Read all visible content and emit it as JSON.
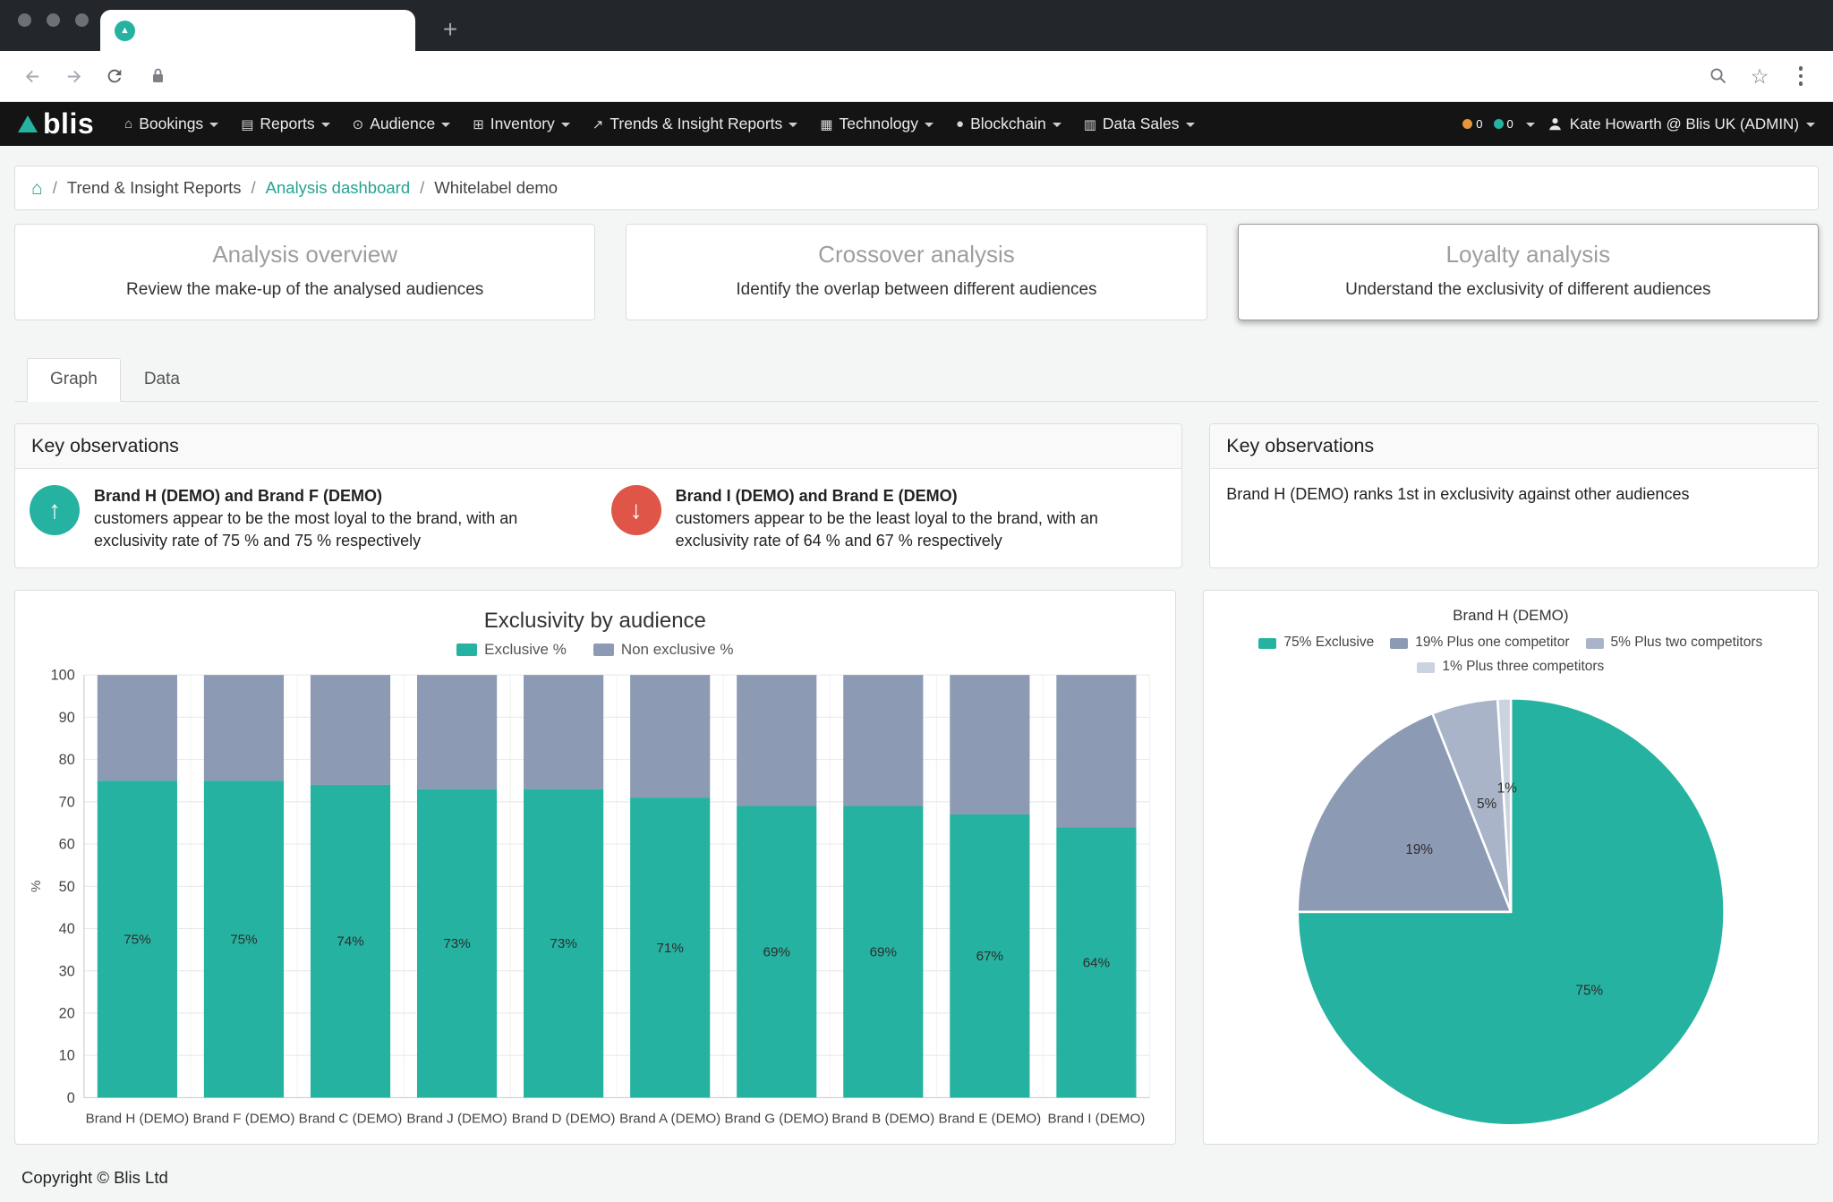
{
  "browser": {
    "tab_title": "",
    "url": ""
  },
  "navbar": {
    "brand": "blis",
    "items": [
      {
        "label": "Bookings",
        "icon": "home"
      },
      {
        "label": "Reports",
        "icon": "bar-chart"
      },
      {
        "label": "Audience",
        "icon": "target"
      },
      {
        "label": "Inventory",
        "icon": "grid"
      },
      {
        "label": "Trends & Insight Reports",
        "icon": "line-chart"
      },
      {
        "label": "Technology",
        "icon": "qr"
      },
      {
        "label": "Blockchain",
        "icon": "dot"
      },
      {
        "label": "Data Sales",
        "icon": "chart"
      }
    ],
    "badges": [
      {
        "value": "0",
        "color": "#e8953c"
      },
      {
        "value": "0",
        "color": "#25b2a0"
      }
    ],
    "user": "Kate Howarth @ Blis UK (ADMIN)"
  },
  "breadcrumb": {
    "items": [
      "Trend & Insight Reports",
      "Analysis dashboard",
      "Whitelabel demo"
    ]
  },
  "cards": [
    {
      "title": "Analysis overview",
      "desc": "Review the make-up of the analysed audiences",
      "selected": false
    },
    {
      "title": "Crossover analysis",
      "desc": "Identify the overlap between different audiences",
      "selected": false
    },
    {
      "title": "Loyalty analysis",
      "desc": "Understand the exclusivity of different audiences",
      "selected": true
    }
  ],
  "tabs": [
    {
      "label": "Graph",
      "active": true
    },
    {
      "label": "Data",
      "active": false
    }
  ],
  "observations_left": {
    "title": "Key observations",
    "items": [
      {
        "bold": "Brand H (DEMO) and Brand F (DEMO)",
        "text": "customers appear to be the most loyal to the brand, with an exclusivity rate of 75 % and 75 % respectively"
      },
      {
        "bold": "Brand I (DEMO) and Brand E (DEMO)",
        "text": "customers appear to be the least loyal to the brand, with an exclusivity rate of 64 % and 67 % respectively"
      }
    ]
  },
  "observations_right": {
    "title": "Key observations",
    "text": "Brand H (DEMO) ranks 1st in exclusivity against other audiences"
  },
  "chart_data": [
    {
      "type": "bar",
      "stacked": true,
      "title": "Exclusivity by audience",
      "categories": [
        "Brand H (DEMO)",
        "Brand F (DEMO)",
        "Brand C (DEMO)",
        "Brand J (DEMO)",
        "Brand D (DEMO)",
        "Brand A (DEMO)",
        "Brand G (DEMO)",
        "Brand B (DEMO)",
        "Brand E (DEMO)",
        "Brand I (DEMO)"
      ],
      "series": [
        {
          "name": "Exclusive %",
          "color": "#25b2a0",
          "values": [
            75,
            75,
            74,
            73,
            73,
            71,
            69,
            69,
            67,
            64
          ]
        },
        {
          "name": "Non exclusive %",
          "color": "#8d9ab4",
          "values": [
            25,
            25,
            26,
            27,
            27,
            29,
            31,
            31,
            33,
            36
          ]
        }
      ],
      "xlabel": "",
      "ylabel": "%",
      "ylim": [
        0,
        100
      ],
      "ytick_step": 10,
      "grid": true,
      "legend_position": "top"
    },
    {
      "type": "pie",
      "title": "Brand H (DEMO)",
      "slices": [
        {
          "label": "75% Exclusive",
          "value": 75,
          "color": "#25b2a0",
          "data_label": "75%"
        },
        {
          "label": "19% Plus one competitor",
          "value": 19,
          "color": "#8d9ab4",
          "data_label": "19%"
        },
        {
          "label": "5% Plus two competitors",
          "value": 5,
          "color": "#a9b4c9",
          "data_label": "5%"
        },
        {
          "label": "1% Plus three competitors",
          "value": 1,
          "color": "#ccd3e0",
          "data_label": "1%"
        }
      ],
      "legend_position": "top"
    }
  ],
  "footer": {
    "copyright": "Copyright © Blis Ltd"
  },
  "colors": {
    "accent": "#25b2a0",
    "non_exclusive": "#8d9ab4",
    "negative": "#df5649"
  }
}
